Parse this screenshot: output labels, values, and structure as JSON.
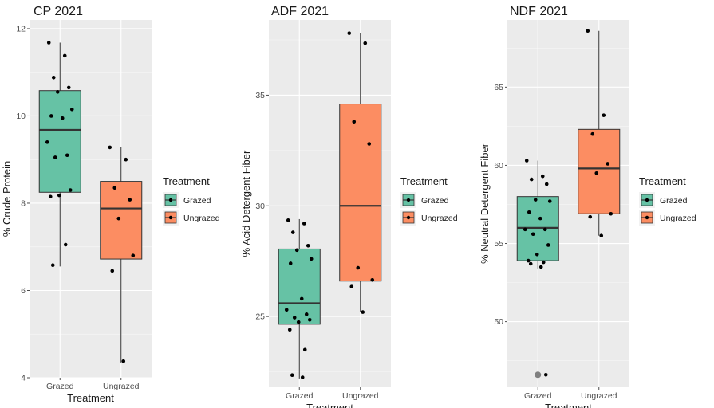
{
  "legend": {
    "title": "Treatment",
    "items": [
      {
        "label": "Grazed",
        "color": "#66c2a5"
      },
      {
        "label": "Ungrazed",
        "color": "#fc8d62"
      }
    ]
  },
  "chart_data": [
    {
      "type": "boxplot",
      "title": "CP 2021",
      "xlabel": "Treatment",
      "ylabel": "% Crude Protein",
      "categories": [
        "Grazed",
        "Ungrazed"
      ],
      "ylim": [
        4,
        12.2
      ],
      "yticks": [
        4,
        6,
        8,
        10,
        12
      ],
      "boxes": [
        {
          "name": "Grazed",
          "min": 6.55,
          "q1": 8.25,
          "median": 9.68,
          "q3": 10.58,
          "max": 11.68,
          "outliers": []
        },
        {
          "name": "Ungrazed",
          "min": 4.35,
          "q1": 6.72,
          "median": 7.88,
          "q3": 8.5,
          "max": 9.28,
          "outliers": []
        }
      ],
      "points": [
        {
          "group": "Grazed",
          "values": [
            11.68,
            11.38,
            10.88,
            10.65,
            10.55,
            10.15,
            10.0,
            9.95,
            9.4,
            9.1,
            9.05,
            8.3,
            8.18,
            8.15,
            7.05,
            6.58
          ]
        },
        {
          "group": "Ungrazed",
          "values": [
            9.28,
            9.0,
            8.35,
            8.08,
            7.65,
            6.8,
            6.45,
            4.38
          ]
        }
      ],
      "grid": true,
      "legend_position": "right"
    },
    {
      "type": "boxplot",
      "title": "ADF 2021",
      "xlabel": "Treatment",
      "ylabel": "% Acid Detergent Fiber",
      "categories": [
        "Grazed",
        "Ungrazed"
      ],
      "ylim": [
        21.8,
        38.4
      ],
      "yticks": [
        25,
        30,
        35
      ],
      "boxes": [
        {
          "name": "Grazed",
          "min": 22.2,
          "q1": 24.65,
          "median": 25.6,
          "q3": 28.05,
          "max": 29.4,
          "outliers": []
        },
        {
          "name": "Ungrazed",
          "min": 25.2,
          "q1": 26.6,
          "median": 30.0,
          "q3": 34.6,
          "max": 37.8,
          "outliers": []
        }
      ],
      "points": [
        {
          "group": "Grazed",
          "values": [
            29.35,
            29.2,
            28.8,
            28.2,
            28.0,
            27.6,
            27.4,
            25.8,
            25.3,
            25.1,
            24.95,
            24.85,
            24.75,
            24.4,
            23.5,
            22.35,
            22.25
          ]
        },
        {
          "group": "Ungrazed",
          "values": [
            37.8,
            37.35,
            33.8,
            32.8,
            27.2,
            26.65,
            26.35,
            25.2
          ]
        }
      ],
      "grid": true,
      "legend_position": "right"
    },
    {
      "type": "boxplot",
      "title": "NDF 2021",
      "xlabel": "Treatment",
      "ylabel": "% Neutral Detergent Fiber",
      "categories": [
        "Grazed",
        "Ungrazed"
      ],
      "ylim": [
        45.8,
        69.3
      ],
      "yticks": [
        50,
        55,
        60,
        65
      ],
      "boxes": [
        {
          "name": "Grazed",
          "min": 53.4,
          "q1": 53.9,
          "median": 56.0,
          "q3": 58.0,
          "max": 60.3,
          "outliers": [
            46.6
          ]
        },
        {
          "name": "Ungrazed",
          "min": 55.5,
          "q1": 56.9,
          "median": 59.8,
          "q3": 62.3,
          "max": 68.6,
          "outliers": []
        }
      ],
      "points": [
        {
          "group": "Grazed",
          "values": [
            60.3,
            59.3,
            59.1,
            58.8,
            57.8,
            57.7,
            57.0,
            56.6,
            55.9,
            55.9,
            55.6,
            54.9,
            54.3,
            53.9,
            53.8,
            53.7,
            53.5,
            46.6
          ]
        },
        {
          "group": "Ungrazed",
          "values": [
            68.6,
            63.2,
            62.0,
            60.1,
            59.5,
            56.9,
            56.7,
            55.5
          ]
        }
      ],
      "grid": true,
      "legend_position": "right"
    }
  ]
}
